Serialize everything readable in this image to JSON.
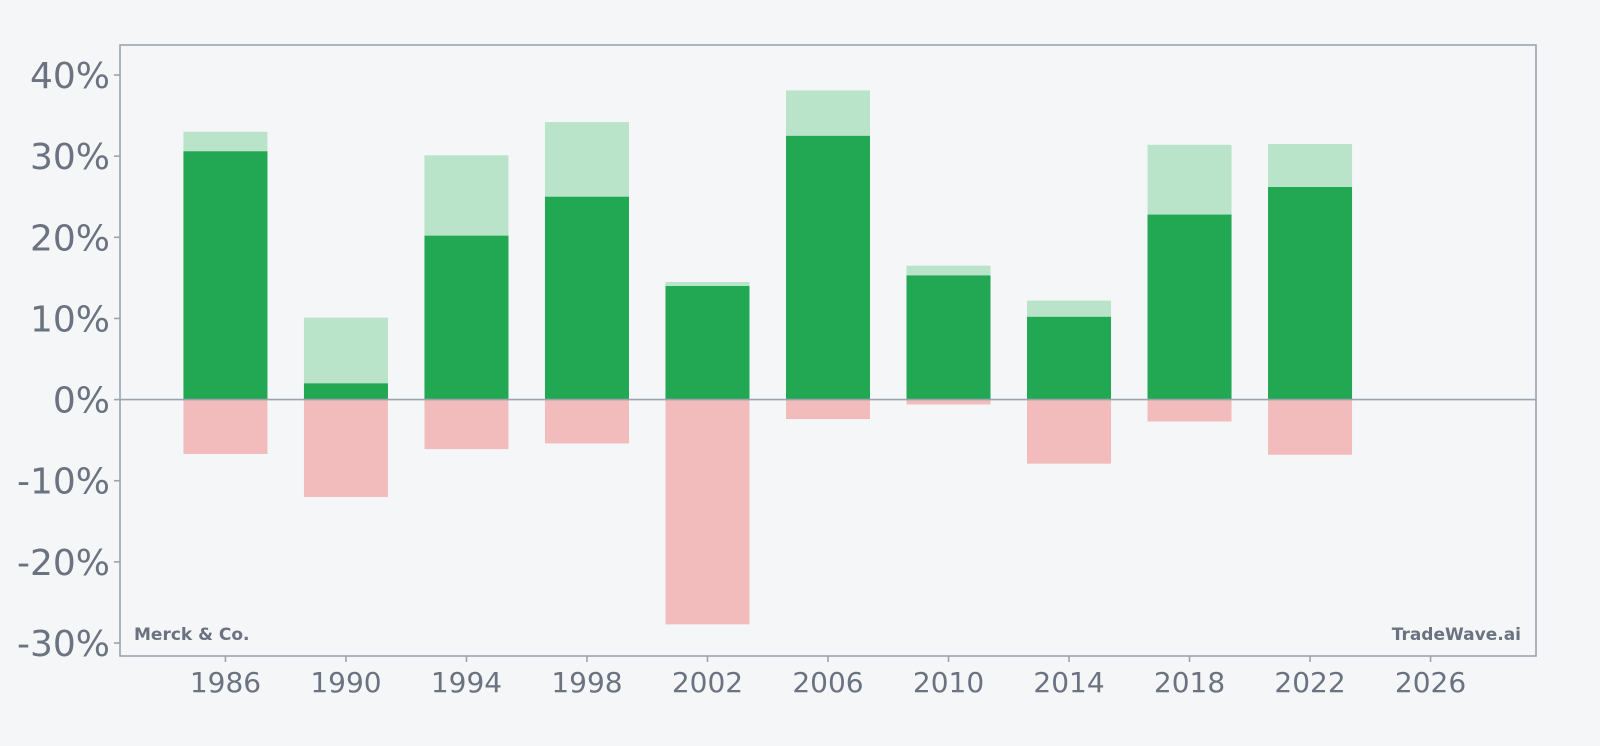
{
  "chart_data": {
    "type": "bar",
    "x": [
      1986,
      1990,
      1994,
      1998,
      2002,
      2006,
      2010,
      2014,
      2018,
      2022
    ],
    "series": [
      {
        "values": [
          30.6,
          2.0,
          20.2,
          25.0,
          14.0,
          32.5,
          15.3,
          10.2,
          22.8,
          26.2
        ]
      },
      {
        "values": [
          33.0,
          10.1,
          30.1,
          34.2,
          14.5,
          38.1,
          16.5,
          12.2,
          31.4,
          31.5
        ]
      },
      {
        "values": [
          -6.7,
          -12.0,
          -6.1,
          -5.4,
          -27.7,
          -2.4,
          -0.6,
          -7.9,
          -2.7,
          -6.8
        ]
      }
    ],
    "x_ticks": [
      "1986",
      "1990",
      "1994",
      "1998",
      "2002",
      "2006",
      "2010",
      "2014",
      "2018",
      "2022",
      "2026"
    ],
    "y_ticks": [
      "40%",
      "30%",
      "20%",
      "10%",
      "0%",
      "-10%",
      "-20%",
      "-30%"
    ],
    "xlim": [
      1982.5,
      2029.5
    ],
    "ylim": [
      -31.6,
      43.7
    ],
    "grid": false,
    "colors": {
      "bar_main": "#22a752",
      "bar_high": "#b9e4c9",
      "bar_low": "#f3bcbc",
      "axis": "#9ca3af",
      "zero_line": "#9ca3af",
      "tick_text": "#6b7280",
      "background": "#f4f6f8"
    }
  },
  "watermark_left": "Merck & Co.",
  "watermark_right": "TradeWave.ai"
}
